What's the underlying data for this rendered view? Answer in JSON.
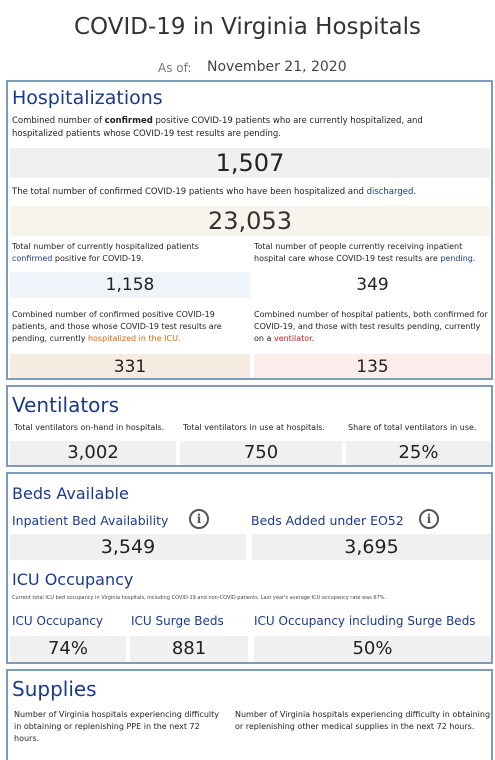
{
  "header": {
    "title": "COVID-19 in Virginia Hospitals",
    "asof_label": "As of:",
    "asof_date": "November 21, 2020"
  },
  "hospitalizations": {
    "title": "Hospitalizations",
    "desc1_pre": "Combined number of ",
    "desc1_bold": "confirmed",
    "desc1_post": " positive COVID-19 patients who are currently hospitalized, and hospitalized patients whose COVID-19 test results are pending.",
    "value1": "1,507",
    "desc2_pre": "The total number of confirmed COVID-19 patients who have been hospitalized and ",
    "desc2_link": "discharged",
    "desc2_post": ".",
    "value2": "23,053",
    "left_a_text": "Total number of currently hospitalized patients",
    "left_a_link": "confirmed",
    "left_a_post": " positive for COVID-19.",
    "left_a_value": "1,158",
    "right_a_text": "Total number of people currently receiving inpatient hospital care whose COVID-19 test results are ",
    "right_a_link": "pending",
    "right_a_post": ".",
    "right_a_value": "349",
    "left_b_text": "Combined number of confirmed positive COVID-19 patients, and those whose COVID-19 test results are pending, currently ",
    "left_b_link": "hospitalized in the ICU.",
    "left_b_value": "331",
    "right_b_text": "Combined number of hospital patients, both confirmed for COVID-19, and those with test results pending, currently on a ",
    "right_b_link": "ventilator",
    "right_b_post": ".",
    "right_b_value": "135"
  },
  "ventilators": {
    "title": "Ventilators",
    "cols": [
      {
        "label": "Total ventilators on-hand in hospitals.",
        "value": "3,002"
      },
      {
        "label": "Total ventilators in use at hospitals.",
        "value": "750"
      },
      {
        "label": "Share of total ventilators in use.",
        "value": "25%"
      }
    ]
  },
  "beds": {
    "title": "Beds Available",
    "inpatient_label": "Inpatient Bed Availability",
    "inpatient_value": "3,549",
    "added_label": "Beds Added under EO52",
    "added_value": "3,695",
    "icu_title": "ICU Occupancy",
    "icu_note": "Current total ICU bed occupancy in Virginia hospitals, including COVID-19 and non-COVID patients. Last year's average ICU occupancy rate was 67%.",
    "icu_cols": [
      {
        "label": "ICU Occupancy",
        "value": "74%"
      },
      {
        "label": "ICU Surge Beds",
        "value": "881"
      },
      {
        "label": "ICU Occupancy including Surge Beds",
        "value": "50%"
      }
    ]
  },
  "supplies": {
    "title": "Supplies",
    "left_text": "Number of Virginia hospitals experiencing difficulty in obtaining or replenishing PPE in the next 72 hours.",
    "right_text": "Number of Virginia hospitals experiencing difficulty in obtaining or replenishing other medical supplies in the next 72 hours."
  },
  "colors": {
    "panel_border": "#7d9cb8",
    "heading_blue": "#1a3a8a",
    "box_grey": "#f0f0f0",
    "box_beige": "#f7f4ec",
    "box_lightblue": "#eef4fa",
    "box_tan": "#f5ebe0",
    "box_pink": "#fcecec"
  }
}
